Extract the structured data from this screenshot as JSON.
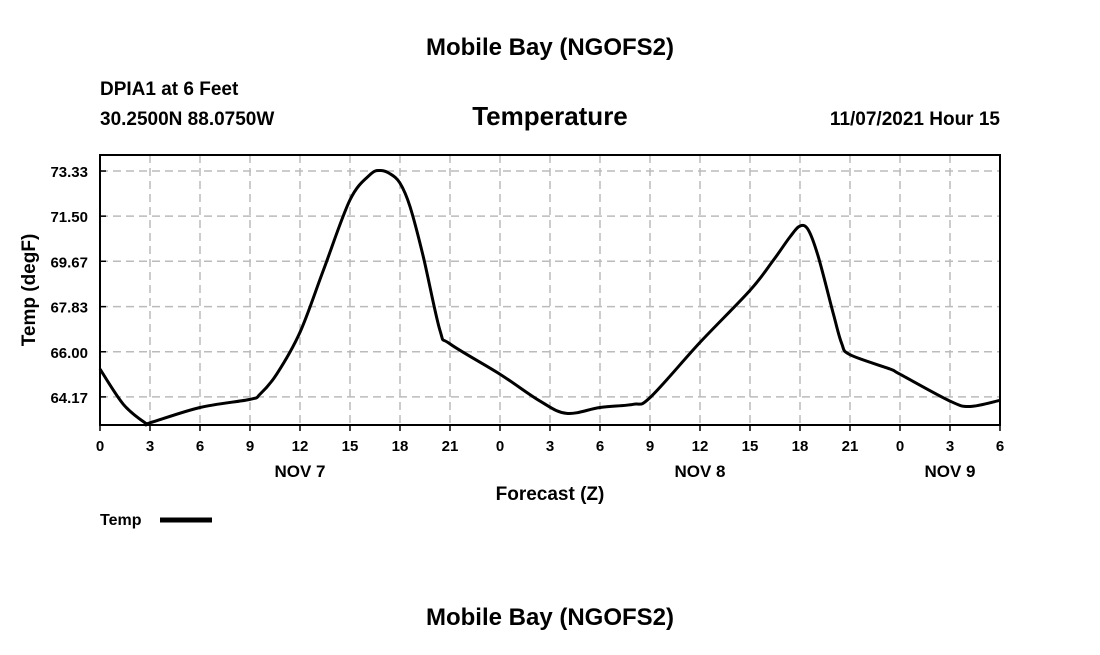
{
  "header": {
    "title": "Mobile Bay (NGOFS2)",
    "station": "DPIA1 at 6 Feet",
    "coords": "30.2500N  88.0750W",
    "chart_title": "Temperature",
    "datetime": "11/07/2021 Hour 15",
    "footer_title": "Mobile Bay (NGOFS2)"
  },
  "chart_data": {
    "type": "line",
    "title": "Temperature",
    "xlabel": "Forecast (Z)",
    "ylabel": "Temp (degF)",
    "xlim": [
      0,
      54
    ],
    "ylim": [
      63.03,
      73.98
    ],
    "grid": true,
    "legend": "bottom-left",
    "yticks": [
      "73.33",
      "71.50",
      "69.67",
      "67.83",
      "66.00",
      "64.17"
    ],
    "xtick_labels": [
      "0",
      "3",
      "6",
      "9",
      "12",
      "15",
      "18",
      "21",
      "0",
      "3",
      "6",
      "9",
      "12",
      "15",
      "18",
      "21",
      "0",
      "3",
      "6"
    ],
    "date_labels": [
      {
        "label": "NOV 7",
        "hour": 12
      },
      {
        "label": "NOV 8",
        "hour": 36
      },
      {
        "label": "NOV 9",
        "hour": 51
      }
    ],
    "series": [
      {
        "name": "Temp",
        "color": "#000000",
        "x": [
          0,
          1.4,
          2.7,
          3,
          6,
          9,
          9.6,
          10.6,
          12,
          13.4,
          15,
          16.2,
          16.8,
          17.4,
          18,
          18.6,
          19.4,
          20.4,
          21,
          24,
          26.4,
          28,
          30,
          32,
          33,
          36,
          39,
          40.4,
          41.4,
          42,
          42.5,
          43.1,
          44,
          44.5,
          45,
          47.4,
          48,
          51,
          52.2,
          54
        ],
        "y": [
          65.3,
          63.87,
          63.12,
          63.12,
          63.74,
          64.07,
          64.28,
          65.09,
          66.79,
          69.3,
          72.16,
          73.18,
          73.35,
          73.22,
          72.84,
          71.89,
          69.85,
          66.86,
          66.32,
          65.09,
          64.0,
          63.5,
          63.74,
          63.87,
          64.14,
          66.38,
          68.49,
          69.71,
          70.66,
          71.1,
          70.94,
          69.85,
          67.54,
          66.34,
          65.88,
          65.3,
          65.09,
          64.0,
          63.78,
          64.03
        ]
      }
    ]
  }
}
